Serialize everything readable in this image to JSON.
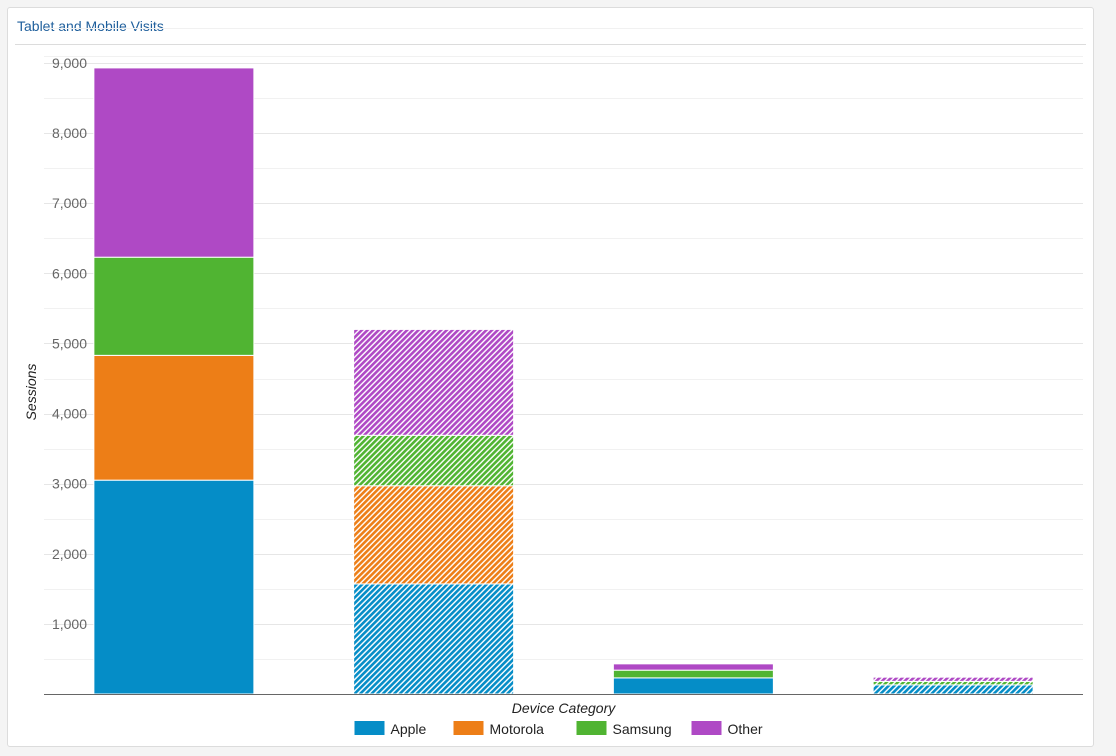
{
  "panel": {
    "title": "Tablet and Mobile Visits"
  },
  "chart_data": {
    "type": "bar",
    "stacked": true,
    "title": "",
    "xlabel": "Device Category",
    "ylabel": "Sessions",
    "ylim": [
      0,
      9000
    ],
    "y_ticks": [
      1000,
      2000,
      3000,
      4000,
      5000,
      6000,
      7000,
      8000,
      9000
    ],
    "y_tick_labels": [
      "1,000",
      "2,000",
      "3,000",
      "4,000",
      "5,000",
      "6,000",
      "7,000",
      "8,000",
      "9,000"
    ],
    "categories": [
      "",
      "",
      "",
      ""
    ],
    "bar_styles": [
      "solid",
      "hatched",
      "solid",
      "hatched"
    ],
    "series": [
      {
        "name": "Apple",
        "color": "#058dc7",
        "values": [
          3050,
          1570,
          230,
          130
        ]
      },
      {
        "name": "Motorola",
        "color": "#ed7e17",
        "values": [
          1780,
          1400,
          0,
          0
        ]
      },
      {
        "name": "Samsung",
        "color": "#50b432",
        "values": [
          1400,
          720,
          110,
          50
        ]
      },
      {
        "name": "Other",
        "color": "#af49c5",
        "values": [
          2700,
          1510,
          90,
          60
        ]
      }
    ],
    "grid": true,
    "legend": "bottom-center"
  }
}
